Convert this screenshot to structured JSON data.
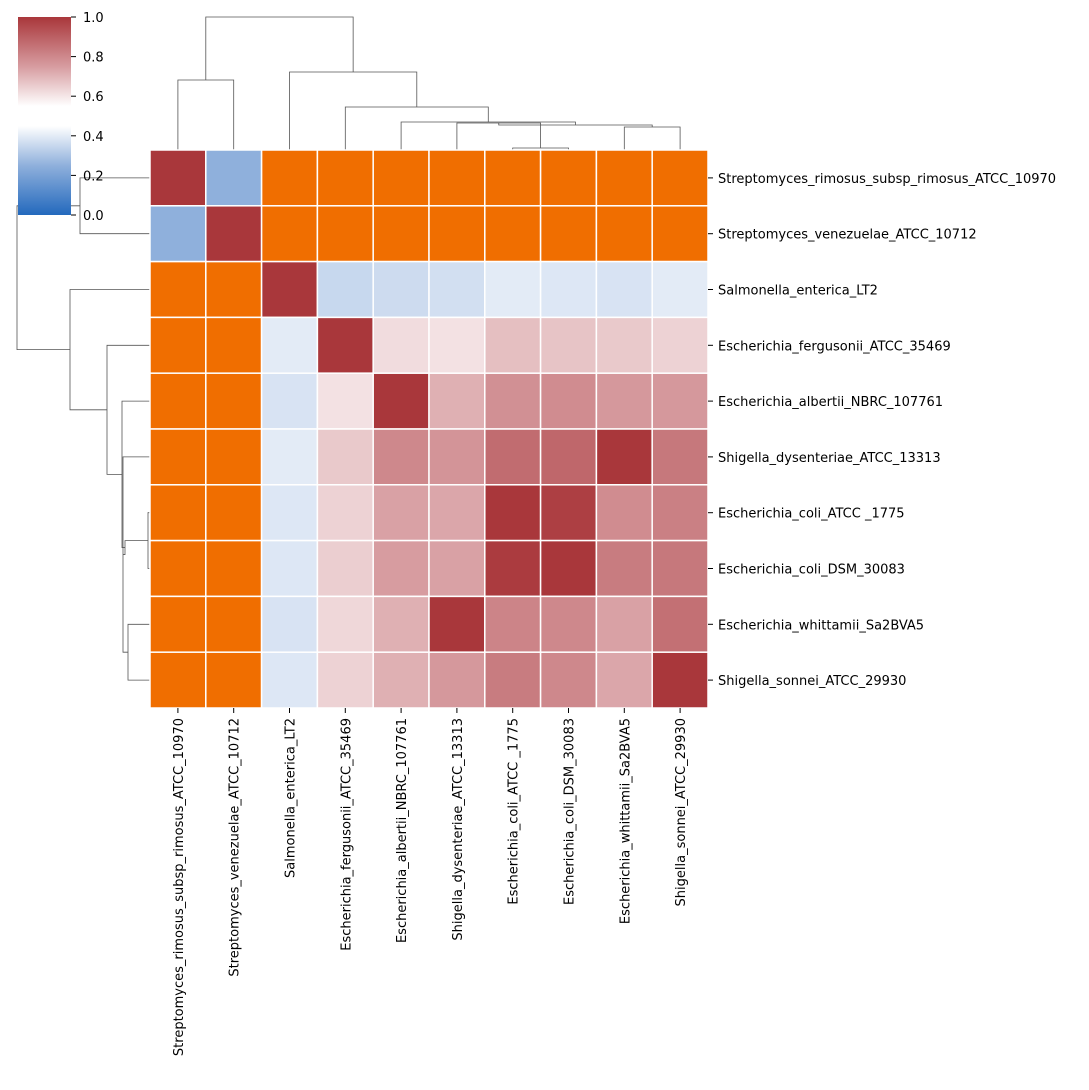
{
  "chart_data": {
    "type": "heatmap",
    "title": "",
    "xlabel": "",
    "ylabel": "",
    "labels": [
      "Streptomyces_rimosus_subsp_rimosus_ATCC_10970",
      "Streptomyces_venezuelae_ATCC_10712",
      "Salmonella_enterica_LT2",
      "Escherichia_fergusonii_ATCC_35469",
      "Escherichia_albertii_NBRC_107761",
      "Shigella_dysenteriae_ATCC_13313",
      "Escherichia_coli_ATCC _1775",
      "Escherichia_coli_DSM_30083",
      "Escherichia_whittamii_Sa2BVA5",
      "Shigella_sonnei_ATCC_29930"
    ],
    "values": [
      [
        1.0,
        0.25,
        null,
        null,
        null,
        null,
        null,
        null,
        null,
        null
      ],
      [
        0.25,
        1.0,
        null,
        null,
        null,
        null,
        null,
        null,
        null,
        null
      ],
      [
        null,
        null,
        1.0,
        0.35,
        0.36,
        0.37,
        0.4,
        0.39,
        0.38,
        0.4
      ],
      [
        null,
        null,
        0.4,
        1.0,
        0.62,
        0.61,
        0.68,
        0.67,
        0.66,
        0.64
      ],
      [
        null,
        null,
        0.38,
        0.61,
        1.0,
        0.71,
        0.78,
        0.79,
        0.76,
        0.76
      ],
      [
        null,
        null,
        0.4,
        0.66,
        0.8,
        0.77,
        0.87,
        0.88,
        1.0,
        0.84
      ],
      [
        null,
        null,
        0.39,
        0.64,
        0.74,
        0.73,
        1.0,
        0.98,
        0.79,
        0.82
      ],
      [
        null,
        null,
        0.39,
        0.65,
        0.75,
        0.74,
        0.99,
        1.0,
        0.83,
        0.84
      ],
      [
        null,
        null,
        0.38,
        0.63,
        0.71,
        1.0,
        0.81,
        0.8,
        0.74,
        0.86
      ],
      [
        null,
        null,
        0.39,
        0.64,
        0.71,
        0.76,
        0.83,
        0.8,
        0.73,
        1.0
      ]
    ],
    "missing_color": "#f06e00",
    "cell_border_color": "#ffffff",
    "colormap": "vlag",
    "colorbar": {
      "range": [
        0.0,
        1.0
      ],
      "ticks": [
        "0.0",
        "0.2",
        "0.4",
        "0.6",
        "0.8",
        "1.0"
      ],
      "tick_values": [
        0.0,
        0.2,
        0.4,
        0.6,
        0.8,
        1.0
      ]
    },
    "row_dendrogram": true,
    "col_dendrogram": true,
    "legend": "colorbar top-left"
  }
}
